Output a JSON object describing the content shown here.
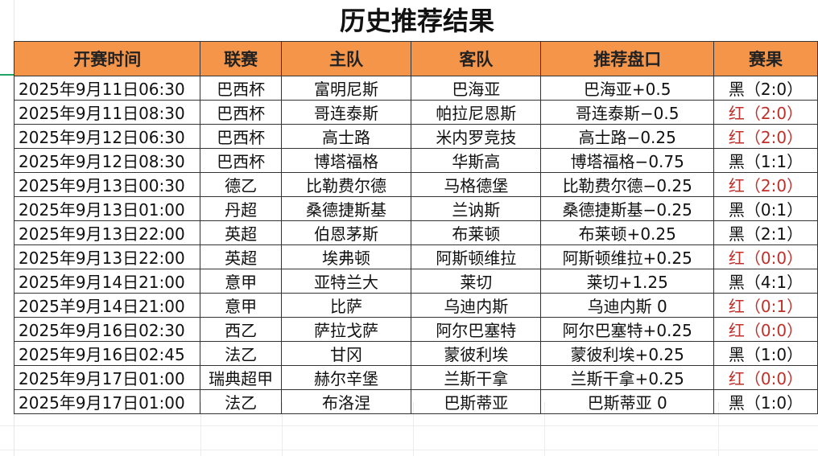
{
  "title": "历史推荐结果",
  "headers": [
    "开赛时间",
    "联赛",
    "主队",
    "客队",
    "推荐盘口",
    "赛果"
  ],
  "colors": {
    "header_bg": "#f4954a",
    "win": "#c0302a",
    "loss": "#111111"
  },
  "rows": [
    {
      "time": "2025年9月11日06:30",
      "league": "巴西杯",
      "home": "富明尼斯",
      "away": "巴海亚",
      "pick": "巴海亚+0.5",
      "result": "黑（2:0）",
      "status": "black"
    },
    {
      "time": "2025年9月11日08:30",
      "league": "巴西杯",
      "home": "哥连泰斯",
      "away": "帕拉尼恩斯",
      "pick": "哥连泰斯−0.5",
      "result": "红（2:0）",
      "status": "red"
    },
    {
      "time": "2025年9月12日06:30",
      "league": "巴西杯",
      "home": "高士路",
      "away": "米内罗竞技",
      "pick": "高士路−0.25",
      "result": "红（2:0）",
      "status": "red"
    },
    {
      "time": "2025年9月12日08:30",
      "league": "巴西杯",
      "home": "博塔福格",
      "away": "华斯高",
      "pick": "博塔福格−0.75",
      "result": "黑（1:1）",
      "status": "black"
    },
    {
      "time": "2025年9月13日00:30",
      "league": "德乙",
      "home": "比勒费尔德",
      "away": "马格德堡",
      "pick": "比勒费尔德−0.25",
      "result": "红（2:0）",
      "status": "red"
    },
    {
      "time": "2025年9月13日01:00",
      "league": "丹超",
      "home": "桑德捷斯基",
      "away": "兰讷斯",
      "pick": "桑德捷斯基−0.25",
      "result": "黑（0:1）",
      "status": "black"
    },
    {
      "time": "2025年9月13日22:00",
      "league": "英超",
      "home": "伯恩茅斯",
      "away": "布莱顿",
      "pick": "布莱顿+0.25",
      "result": "黑（2:1）",
      "status": "black"
    },
    {
      "time": "2025年9月13日22:00",
      "league": "英超",
      "home": "埃弗顿",
      "away": "阿斯顿维拉",
      "pick": "阿斯顿维拉+0.25",
      "result": "红（0:0）",
      "status": "red"
    },
    {
      "time": "2025年9月14日21:00",
      "league": "意甲",
      "home": "亚特兰大",
      "away": "莱切",
      "pick": "莱切+1.25",
      "result": "黑（4:1）",
      "status": "black"
    },
    {
      "time": "2025羊9月14日21:00",
      "league": "意甲",
      "home": "比萨",
      "away": "乌迪内斯",
      "pick": "乌迪内斯 0",
      "result": "红（0:1）",
      "status": "red"
    },
    {
      "time": "2025年9月16日02:30",
      "league": "西乙",
      "home": "萨拉戈萨",
      "away": "阿尔巴塞特",
      "pick": "阿尔巴塞特+0.25",
      "result": "红（0:0）",
      "status": "red"
    },
    {
      "time": "2025年9月16日02:45",
      "league": "法乙",
      "home": "甘冈",
      "away": "蒙彼利埃",
      "pick": "蒙彼利埃+0.25",
      "result": "黑（1:0）",
      "status": "black"
    },
    {
      "time": "2025年9月17日01:00",
      "league": "瑞典超甲",
      "home": "赫尔辛堡",
      "away": "兰斯干拿",
      "pick": "兰斯干拿+0.25",
      "result": "红（0:0）",
      "status": "red"
    },
    {
      "time": "2025年9月17日01:00",
      "league": "法乙",
      "home": "布洛涅",
      "away": "巴斯蒂亚",
      "pick": "巴斯蒂亚 0",
      "result": "黑（1:0）",
      "status": "black"
    }
  ]
}
